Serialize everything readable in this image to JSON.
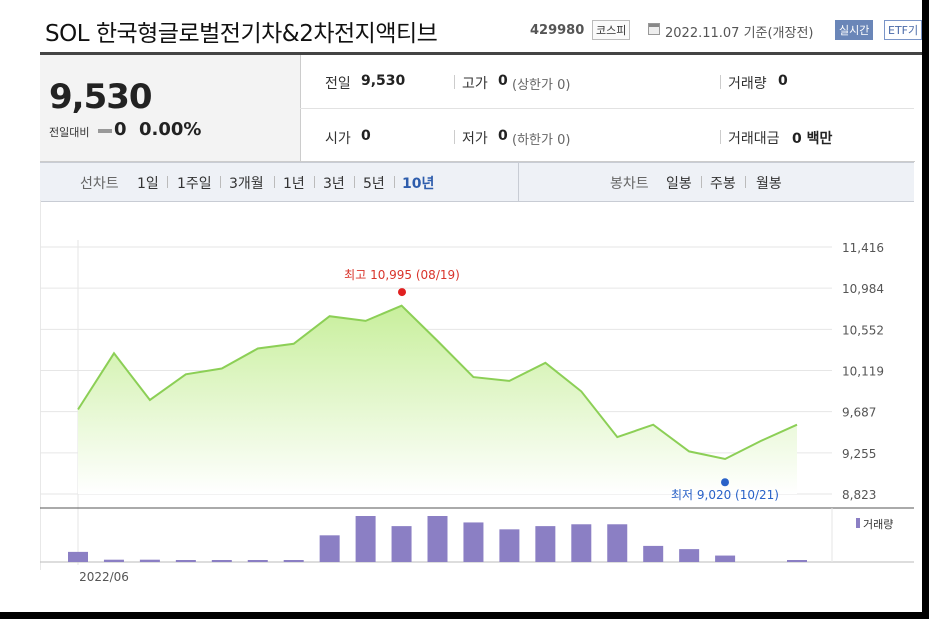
{
  "header": {
    "title": "SOL 한국형글로벌전기차&2차전지액티브",
    "code": "429980",
    "market_badge": "코스피",
    "date_text": "2022.11.07  기준(개장전)",
    "realtime_label": "실시간",
    "etf_label": "ETF기"
  },
  "summary": {
    "price": "9,530",
    "change_label": "전일대비",
    "change_value": "0",
    "change_percent": "0.00%"
  },
  "stats": {
    "prev_close_label": "전일",
    "prev_close_value": "9,530",
    "high_label": "고가",
    "high_value": "0",
    "high_note": "(상한가 0)",
    "volume_label": "거래량",
    "volume_value": "0",
    "open_label": "시가",
    "open_value": "0",
    "low_label": "저가",
    "low_value": "0",
    "low_note": "(하한가 0)",
    "amount_label": "거래대금",
    "amount_value": "0 백만"
  },
  "tabs": {
    "line_label": "선차트",
    "line_periods": [
      "1일",
      "1주일",
      "3개월",
      "1년",
      "3년",
      "5년",
      "10년"
    ],
    "active_period": "10년",
    "candle_label": "봉차트",
    "candle_periods": [
      "일봉",
      "주봉",
      "월봉"
    ]
  },
  "chart_data": {
    "type": "area",
    "y_ticks": [
      "11,416",
      "10,984",
      "10,552",
      "10,119",
      "9,687",
      "9,255",
      "8,823"
    ],
    "ylim": [
      8823,
      11416
    ],
    "x_tick_label": "2022/06",
    "values": [
      9710,
      10300,
      9810,
      10080,
      10140,
      10350,
      10400,
      10690,
      10640,
      10800,
      10430,
      10050,
      10010,
      10200,
      9900,
      9420,
      9550,
      9270,
      9190,
      9380,
      9550
    ],
    "high_annotation": "최고 10,995 (08/19)",
    "high_value": 10995,
    "low_annotation": "최저 9,020 (10/21)",
    "low_value": 9020,
    "volume_legend": "거래량",
    "volume_values": [
      0.22,
      0.05,
      0.05,
      0.03,
      0.03,
      0.03,
      0.03,
      0.58,
      1.0,
      0.78,
      1.0,
      0.86,
      0.71,
      0.78,
      0.82,
      0.82,
      0.35,
      0.28,
      0.14,
      0.0,
      0.03
    ],
    "grid": true,
    "colors": {
      "line": "#8ccf56",
      "fill_top": "#c8ef9c",
      "fill_bottom": "#ffffff",
      "volume_bar": "#8b7fc4",
      "high_dot": "#e02020",
      "low_dot": "#2a62c8",
      "high_text": "#d9342b",
      "low_text": "#2a62c8"
    }
  }
}
